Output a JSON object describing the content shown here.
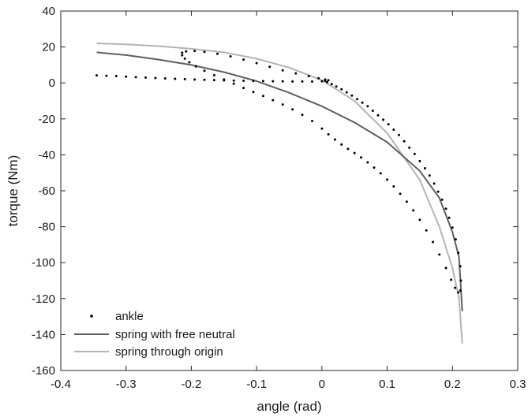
{
  "chart_data": {
    "type": "scatter",
    "title": "",
    "xlabel": "angle (rad)",
    "ylabel": "torque (Nm)",
    "xlim": [
      -0.4,
      0.3
    ],
    "ylim": [
      -160,
      40
    ],
    "x_ticks": [
      -0.4,
      -0.3,
      -0.2,
      -0.1,
      0,
      0.1,
      0.2,
      0.3
    ],
    "x_tick_labels": [
      "-0.4",
      "-0.3",
      "-0.2",
      "-0.1",
      "0",
      "0.1",
      "0.2",
      "0.3"
    ],
    "y_ticks": [
      40,
      20,
      0,
      -20,
      -40,
      -60,
      -80,
      -100,
      -120,
      -140,
      -160
    ],
    "y_tick_labels": [
      "40",
      "20",
      "0",
      "-20",
      "-40",
      "-60",
      "-80",
      "-100",
      "-120",
      "-140",
      "-160"
    ],
    "grid": false,
    "legend_position": "bottom-left",
    "series": [
      {
        "name": "ankle",
        "type": "scatter",
        "color": "#000000",
        "points": [
          [
            -0.345,
            4.2
          ],
          [
            -0.33,
            4.0
          ],
          [
            -0.315,
            3.8
          ],
          [
            -0.3,
            3.5
          ],
          [
            -0.285,
            3.2
          ],
          [
            -0.27,
            3.0
          ],
          [
            -0.255,
            2.7
          ],
          [
            -0.24,
            2.5
          ],
          [
            -0.225,
            2.3
          ],
          [
            -0.21,
            2.1
          ],
          [
            -0.195,
            1.9
          ],
          [
            -0.18,
            1.7
          ],
          [
            -0.165,
            1.6
          ],
          [
            -0.15,
            1.4
          ],
          [
            -0.135,
            1.3
          ],
          [
            -0.12,
            1.2
          ],
          [
            -0.105,
            1.1
          ],
          [
            -0.09,
            1.0
          ],
          [
            -0.075,
            0.9
          ],
          [
            -0.06,
            0.9
          ],
          [
            -0.045,
            0.8
          ],
          [
            -0.03,
            0.8
          ],
          [
            -0.015,
            0.8
          ],
          [
            0.0,
            0.9
          ],
          [
            0.005,
            1.2
          ],
          [
            0.01,
            1.5
          ],
          [
            0.005,
            1.9
          ],
          [
            -0.005,
            2.6
          ],
          [
            -0.02,
            3.8
          ],
          [
            -0.04,
            5.3
          ],
          [
            -0.06,
            7.0
          ],
          [
            -0.08,
            9.0
          ],
          [
            -0.1,
            11.0
          ],
          [
            -0.12,
            13.0
          ],
          [
            -0.14,
            14.8
          ],
          [
            -0.16,
            16.2
          ],
          [
            -0.18,
            17.3
          ],
          [
            -0.195,
            17.8
          ],
          [
            -0.208,
            17.6
          ],
          [
            -0.214,
            16.8
          ],
          [
            -0.214,
            15.4
          ],
          [
            -0.21,
            13.5
          ],
          [
            -0.203,
            11.5
          ],
          [
            -0.193,
            9.2
          ],
          [
            -0.18,
            6.8
          ],
          [
            -0.165,
            4.3
          ],
          [
            -0.15,
            1.9
          ],
          [
            -0.135,
            -0.4
          ],
          [
            -0.12,
            -2.8
          ],
          [
            -0.105,
            -5.1
          ],
          [
            -0.09,
            -7.3
          ],
          [
            -0.075,
            -9.6
          ],
          [
            -0.06,
            -12.0
          ],
          [
            -0.045,
            -14.7
          ],
          [
            -0.03,
            -17.7
          ],
          [
            -0.015,
            -21.2
          ],
          [
            0.0,
            -25.4
          ],
          [
            0.01,
            -28.6
          ],
          [
            0.02,
            -31.5
          ],
          [
            0.03,
            -34.3
          ],
          [
            0.04,
            -36.7
          ],
          [
            0.05,
            -39.0
          ],
          [
            0.06,
            -41.5
          ],
          [
            0.07,
            -44.2
          ],
          [
            0.08,
            -47.1
          ],
          [
            0.09,
            -50.3
          ],
          [
            0.1,
            -53.8
          ],
          [
            0.11,
            -57.6
          ],
          [
            0.12,
            -61.7
          ],
          [
            0.13,
            -66.1
          ],
          [
            0.14,
            -70.9
          ],
          [
            0.15,
            -76.2
          ],
          [
            0.16,
            -82.0
          ],
          [
            0.17,
            -88.5
          ],
          [
            0.18,
            -95.5
          ],
          [
            0.19,
            -103.0
          ],
          [
            0.198,
            -109.5
          ],
          [
            0.204,
            -114.0
          ],
          [
            0.209,
            -116.6
          ],
          [
            0.212,
            -115.5
          ],
          [
            0.213,
            -110.0
          ],
          [
            0.212,
            -102.0
          ],
          [
            0.209,
            -94.5
          ],
          [
            0.205,
            -87.0
          ],
          [
            0.2,
            -80.5
          ],
          [
            0.195,
            -75.0
          ],
          [
            0.19,
            -70.0
          ],
          [
            0.184,
            -65.0
          ],
          [
            0.178,
            -60.5
          ],
          [
            0.172,
            -56.0
          ],
          [
            0.165,
            -51.5
          ],
          [
            0.158,
            -47.5
          ],
          [
            0.15,
            -43.5
          ],
          [
            0.142,
            -39.5
          ],
          [
            0.134,
            -36.0
          ],
          [
            0.126,
            -32.5
          ],
          [
            0.118,
            -29.0
          ],
          [
            0.11,
            -26.0
          ],
          [
            0.102,
            -23.0
          ],
          [
            0.094,
            -20.5
          ],
          [
            0.086,
            -18.0
          ],
          [
            0.078,
            -15.5
          ],
          [
            0.07,
            -13.0
          ],
          [
            0.062,
            -11.0
          ],
          [
            0.054,
            -9.0
          ],
          [
            0.046,
            -7.0
          ],
          [
            0.038,
            -5.2
          ],
          [
            0.03,
            -3.5
          ],
          [
            0.022,
            -2.0
          ],
          [
            0.015,
            -0.7
          ],
          [
            0.008,
            0.4
          ]
        ]
      },
      {
        "name": "spring with free neutral",
        "type": "line",
        "color": "#5f5f5f",
        "points": [
          [
            -0.345,
            17.0
          ],
          [
            -0.3,
            15.5
          ],
          [
            -0.25,
            13.0
          ],
          [
            -0.2,
            10.0
          ],
          [
            -0.15,
            6.0
          ],
          [
            -0.1,
            1.0
          ],
          [
            -0.05,
            -5.5
          ],
          [
            0.0,
            -13.0
          ],
          [
            0.05,
            -22.0
          ],
          [
            0.1,
            -33.0
          ],
          [
            0.15,
            -49.0
          ],
          [
            0.18,
            -64.0
          ],
          [
            0.2,
            -83.0
          ],
          [
            0.21,
            -97.0
          ],
          [
            0.215,
            -127.0
          ]
        ]
      },
      {
        "name": "spring through origin",
        "type": "line",
        "color": "#b4b4b4",
        "points": [
          [
            -0.345,
            22.0
          ],
          [
            -0.3,
            21.5
          ],
          [
            -0.25,
            20.5
          ],
          [
            -0.2,
            19.0
          ],
          [
            -0.15,
            17.0
          ],
          [
            -0.1,
            13.5
          ],
          [
            -0.05,
            8.5
          ],
          [
            0.0,
            1.5
          ],
          [
            0.05,
            -10.0
          ],
          [
            0.1,
            -28.0
          ],
          [
            0.15,
            -54.0
          ],
          [
            0.18,
            -80.0
          ],
          [
            0.2,
            -103.0
          ],
          [
            0.21,
            -120.0
          ],
          [
            0.215,
            -145.0
          ]
        ]
      }
    ]
  }
}
